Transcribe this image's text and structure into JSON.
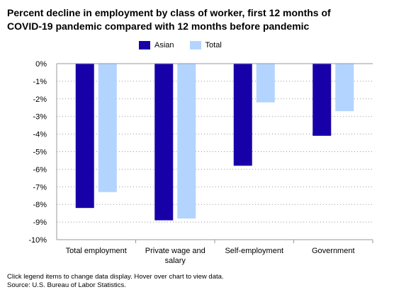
{
  "title_line1": "Percent decline in employment by class of worker, first 12 months of",
  "title_line2": "COVID-19 pandemic compared with 12 months before pandemic",
  "footer": {
    "note": "Click legend items to change data display. Hover over chart to view data.",
    "source": "Source: U.S. Bureau of Labor Statistics."
  },
  "colors": {
    "asian": "#1800a8",
    "total": "#b3d4ff",
    "grid": "#999999",
    "axis": "#999999"
  },
  "chart_data": {
    "type": "bar",
    "title": "Percent decline in employment by class of worker, first 12 months of COVID-19 pandemic compared with 12 months before pandemic",
    "categories": [
      [
        "Total employment"
      ],
      [
        "Private wage and",
        "salary"
      ],
      [
        "Self-employment"
      ],
      [
        "Government"
      ]
    ],
    "series": [
      {
        "name": "Asian",
        "values": [
          -8.2,
          -8.9,
          -5.8,
          -4.1
        ]
      },
      {
        "name": "Total",
        "values": [
          -7.3,
          -8.8,
          -2.2,
          -2.7
        ]
      }
    ],
    "ylim": [
      -10,
      0
    ],
    "yticks": [
      "0%",
      "-1%",
      "-2%",
      "-3%",
      "-4%",
      "-5%",
      "-6%",
      "-7%",
      "-8%",
      "-9%",
      "-10%"
    ],
    "grid": true,
    "legend": "top"
  }
}
